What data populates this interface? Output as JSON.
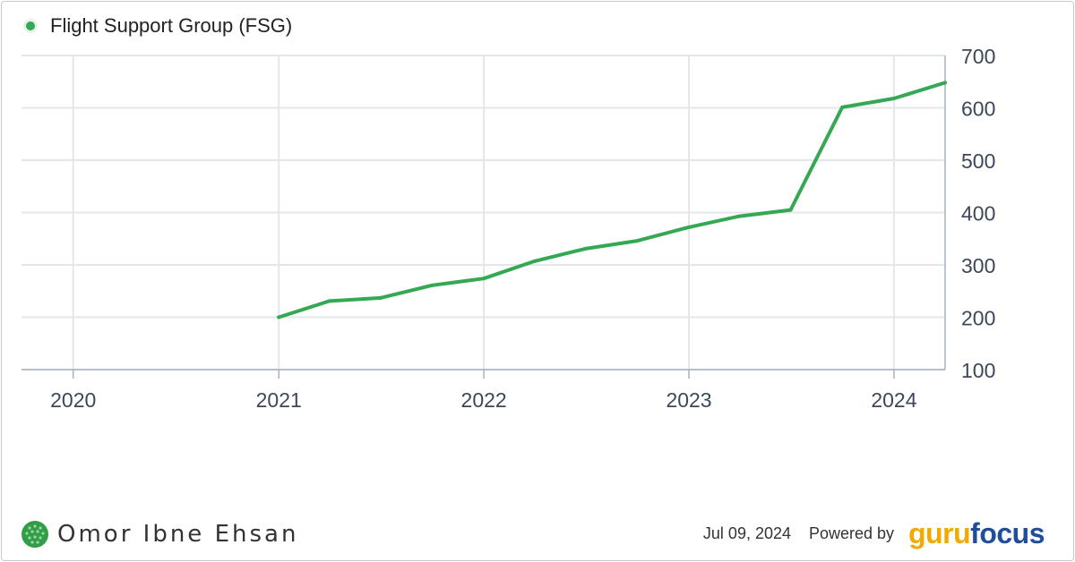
{
  "legend": {
    "label": "Flight Support Group (FSG)",
    "color": "#34a853"
  },
  "author": {
    "name": "Omor Ibne Ehsan",
    "logo_icon": "globe-dots-icon"
  },
  "footer": {
    "date": "Jul 09, 2024",
    "powered_by": "Powered by",
    "brand_part1": "guru",
    "brand_part2": "focus"
  },
  "chart_data": {
    "type": "line",
    "title": "",
    "xlabel": "",
    "ylabel": "",
    "x_ticks": [
      "2020",
      "2021",
      "2022",
      "2023",
      "2024"
    ],
    "y_ticks": [
      100,
      200,
      300,
      400,
      500,
      600,
      700
    ],
    "xlim": [
      "2019-10-01",
      "2024-04-01"
    ],
    "ylim": [
      100,
      700
    ],
    "grid": true,
    "y_axis_side": "right",
    "legend_position": "top-left",
    "series": [
      {
        "name": "Flight Support Group (FSG)",
        "color": "#34a853",
        "points": [
          {
            "x": "2021-01-01",
            "y": 200
          },
          {
            "x": "2021-04-01",
            "y": 231
          },
          {
            "x": "2021-07-01",
            "y": 237
          },
          {
            "x": "2021-10-01",
            "y": 261
          },
          {
            "x": "2022-01-01",
            "y": 274
          },
          {
            "x": "2022-04-01",
            "y": 307
          },
          {
            "x": "2022-07-01",
            "y": 331
          },
          {
            "x": "2022-10-01",
            "y": 346
          },
          {
            "x": "2023-01-01",
            "y": 372
          },
          {
            "x": "2023-04-01",
            "y": 393
          },
          {
            "x": "2023-07-01",
            "y": 405
          },
          {
            "x": "2023-10-01",
            "y": 601
          },
          {
            "x": "2024-01-01",
            "y": 618
          },
          {
            "x": "2024-04-01",
            "y": 648
          }
        ]
      }
    ]
  }
}
